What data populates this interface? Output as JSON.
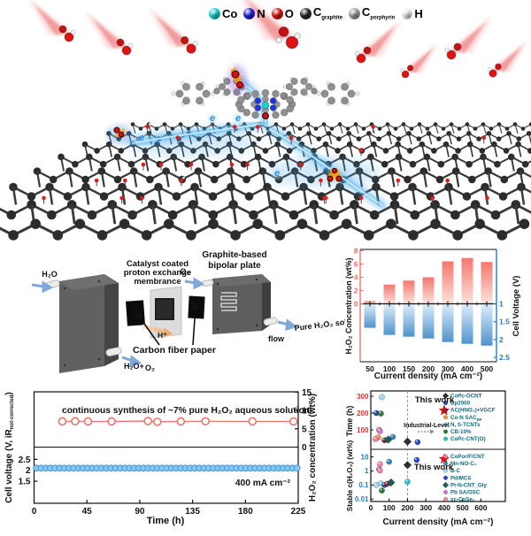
{
  "hero": {
    "atom_legend": [
      {
        "symbol": "Co",
        "color": "#18d0d0"
      },
      {
        "symbol": "N",
        "color": "#2020e0"
      },
      {
        "symbol": "O",
        "color": "#e01212"
      },
      {
        "symbol": "C",
        "sub": "graphite",
        "color": "#2b2b2b"
      },
      {
        "symbol": "C",
        "sub": "porphyrin",
        "color": "#9c9c9c"
      },
      {
        "symbol": "H",
        "color": "#f3f3f3"
      }
    ],
    "electron_label": "e"
  },
  "device": {
    "inlet_label": "H₂O",
    "pem_label_lines": [
      "Catalyst coated",
      "proton exchange",
      "membrance"
    ],
    "plate_label_lines": [
      "Graphite-based",
      "bipolar plate"
    ],
    "o2_label": "O₂",
    "proton_label": "H⁺",
    "cfp_label": "Carbon fiber paper",
    "outlet_label_lines": [
      "Pure H₂O₂ solution",
      "flow"
    ],
    "bottom_out_a": "H₂O+",
    "bottom_out_b": "O₂"
  },
  "chart_data": [
    {
      "id": "performance",
      "type": "bar",
      "categories": [
        50,
        100,
        150,
        200,
        300,
        400,
        500
      ],
      "series": [
        {
          "name": "H₂O₂ Concentration (wt%)",
          "values": [
            0.4,
            2.9,
            3.5,
            4.0,
            6.4,
            6.9,
            6.3
          ],
          "color": "#f3766e"
        },
        {
          "name": "Cell Voltage (V)",
          "values": [
            1.65,
            1.85,
            1.9,
            1.95,
            2.05,
            2.1,
            2.15
          ],
          "color": "#4f93cc"
        }
      ],
      "xlabel": "Current density (mA cm⁻²)",
      "ylabel_left": "H₂O₂ Concentration (wt%)",
      "ylabel_right": "Cell Voltage (V)",
      "yticks_left": [
        0,
        2,
        4,
        6,
        8
      ],
      "yticks_right": [
        1,
        1.5,
        2,
        2.5
      ],
      "ylim_left": [
        0,
        8.6
      ],
      "ylim_right": [
        1,
        2.55
      ],
      "axis_color_left": "#f0736b",
      "axis_color_right": "#1f7fd0"
    },
    {
      "id": "stability",
      "type": "line",
      "xlabel": "Time (h)",
      "xticks": [
        0,
        45,
        90,
        135,
        180,
        225
      ],
      "ylabel_left_main": "Cell voltage (V, iR",
      "ylabel_left_sub": "not-corrected",
      "ylabel_left_close": ")",
      "ylabel_right": "H₂O₂  concentration (wt%)",
      "yticks_left": [
        1.5,
        2,
        2.5
      ],
      "yticks_right": [
        0,
        5,
        10,
        15
      ],
      "annotation": "continuous synthesis of ~7% pure H₂O₂ aqueous solution",
      "condition": "400 mA cm⁻²",
      "series": [
        {
          "name": "H₂O₂ concentration",
          "marker": "open-circle",
          "color": "#f0736b",
          "x": [
            24,
            35,
            46,
            66,
            97,
            105,
            125,
            146,
            186,
            221
          ],
          "y": [
            7,
            7.05,
            7,
            7,
            7.1,
            6.9,
            7,
            7.05,
            7,
            7
          ]
        },
        {
          "name": "Cell voltage",
          "marker": "circle",
          "color": "#85c8f2",
          "value": 2.1,
          "x_start": 2,
          "x_end": 224,
          "n": 57
        }
      ]
    },
    {
      "id": "comparison",
      "type": "scatter",
      "xlabel": "Current density (mA cm⁻²)",
      "xticks": [
        0,
        100,
        200,
        300,
        400,
        500,
        600
      ],
      "vline_x": 200,
      "industrial_label": "Industrial-Level",
      "top": {
        "ylabel": "Time (h)",
        "color": "#e83030",
        "yticks": [
          100,
          200,
          300
        ],
        "this_work_label": "This work",
        "points": [
          {
            "name": "N, S-TCNTs",
            "x": 60,
            "y": 295,
            "color": "#9cd6f4",
            "shape": "circle"
          },
          {
            "name": "Bp2000",
            "x": 30,
            "y": 200,
            "color": "#2b4fa0",
            "shape": "circle"
          },
          {
            "name": "CB-10%",
            "x": 55,
            "y": 197,
            "color": "#2e7d32",
            "shape": "circle"
          },
          {
            "name": "sc-CoSe₂",
            "x": 45,
            "y": 100,
            "color": "#f4888f",
            "shape": "circle"
          },
          {
            "name": "Pb SA/OSC",
            "x": 50,
            "y": 92,
            "color": "#da70d6",
            "shape": "circle"
          },
          {
            "name": "Co-N SAC BP",
            "x": 40,
            "y": 55,
            "color": "#f5912e",
            "shape": "circle"
          },
          {
            "name": "CoPor/F/CNT",
            "x": 25,
            "y": 45,
            "color": "#f283ad",
            "shape": "circle"
          },
          {
            "name": "AC(HNO₃)+VGCF",
            "x": 75,
            "y": 38,
            "color": "#8f2430",
            "shape": "circle"
          },
          {
            "name": "Pt-N-CNT_Gly",
            "x": 95,
            "y": 42,
            "color": "#1c5f55",
            "shape": "diamond"
          },
          {
            "name": "Mn-NO-C₂",
            "x": 120,
            "y": 58,
            "color": "#2f86c4",
            "shape": "circle"
          },
          {
            "name": "CoPc-OCNT",
            "x": 200,
            "y": 30,
            "color": "#2f2f2f",
            "shape": "diamond"
          },
          {
            "name": "Pd/MCS",
            "x": 255,
            "y": 27,
            "color": "#2746c8",
            "shape": "circle"
          },
          {
            "name": "This work",
            "x": 400,
            "y": 215,
            "color": "#e8120c",
            "shape": "star"
          }
        ]
      },
      "bottom": {
        "ylabel": "Stable c(H₂O₂)  (wt%)",
        "color": "#1f7fd0",
        "yticks": [
          0.01,
          0.1,
          1,
          10
        ],
        "this_work_label": "This work",
        "points": [
          {
            "name": "CoPor/F/CNT",
            "x": 50,
            "y": 3,
            "color": "#f283ad",
            "shape": "circle"
          },
          {
            "name": "Pb SA/OSC",
            "x": 45,
            "y": 1.3,
            "color": "#da70d6",
            "shape": "circle"
          },
          {
            "name": "sc-CoSe₂",
            "x": 50,
            "y": 1.05,
            "color": "#f4888f",
            "shape": "circle"
          },
          {
            "name": "Mn-NO-C₂",
            "x": 100,
            "y": 4.5,
            "color": "#2f86c4",
            "shape": "circle"
          },
          {
            "name": "CoPc-OCNT",
            "x": 200,
            "y": 2.6,
            "color": "#2f2f2f",
            "shape": "diamond"
          },
          {
            "name": "Pd/MCS",
            "x": 250,
            "y": 6,
            "color": "#2746c8",
            "shape": "circle"
          },
          {
            "name": "B-C",
            "x": 30,
            "y": 0.1,
            "color": "#a6d8f0",
            "shape": "circle"
          },
          {
            "name": "N, S-TCNTs",
            "x": 55,
            "y": 0.13,
            "color": "#9cd6f4",
            "shape": "circle"
          },
          {
            "name": "CB-10%",
            "x": 60,
            "y": 0.04,
            "color": "#2e7d32",
            "shape": "circle"
          },
          {
            "name": "Bp2000",
            "x": 75,
            "y": 0.1,
            "color": "#2b4fa0",
            "shape": "circle"
          },
          {
            "name": "AC(HNO₃)+VGCF",
            "x": 90,
            "y": 0.12,
            "color": "#8f2430",
            "shape": "circle"
          },
          {
            "name": "Pt-N-CNT_Gly",
            "x": 110,
            "y": 0.15,
            "color": "#1c5f55",
            "shape": "diamond"
          },
          {
            "name": "CoPc-CNT(O)",
            "x": 200,
            "y": 0.17,
            "color": "#29c5d6",
            "shape": "circle"
          },
          {
            "name": "This work",
            "x": 400,
            "y": 7,
            "color": "#e8120c",
            "shape": "star"
          }
        ]
      },
      "legend_top": [
        {
          "label": "CoPc-OCNT",
          "color": "#2f2f2f",
          "shape": "diamond"
        },
        {
          "label": "Bp2000",
          "color": "#2b4fa0",
          "shape": "circle"
        },
        {
          "label": "AC(HNO₃)+VGCF",
          "color": "#8f2430",
          "shape": "circle"
        },
        {
          "label": "Co-N SAC",
          "sub": "BP",
          "color": "#f5912e",
          "shape": "circle"
        },
        {
          "label": "N, S-TCNTs",
          "color": "#9cd6f4",
          "shape": "circle"
        },
        {
          "label": "CB-10%",
          "color": "#2e7d32",
          "shape": "circle"
        },
        {
          "label": "CoPc-CNT(O)",
          "color": "#29c5d6",
          "shape": "circle"
        }
      ],
      "legend_bottom": [
        {
          "label": "CoPor/F/CNT",
          "color": "#f283ad",
          "shape": "circle"
        },
        {
          "label": "Mn-NO-C₂",
          "color": "#2f86c4",
          "shape": "circle"
        },
        {
          "label": "B-C",
          "color": "#a6d8f0",
          "shape": "circle"
        },
        {
          "label": "Pd/MCS",
          "color": "#2746c8",
          "shape": "circle"
        },
        {
          "label": "Pt-N-CNT_Gly",
          "color": "#1c5f55",
          "shape": "diamond"
        },
        {
          "label": "Pb SA/OSC",
          "color": "#da70d6",
          "shape": "circle"
        },
        {
          "label": "sc-CoSe₂",
          "color": "#f4888f",
          "shape": "circle"
        }
      ],
      "legend_text_color": "#0b6b7e"
    }
  ]
}
